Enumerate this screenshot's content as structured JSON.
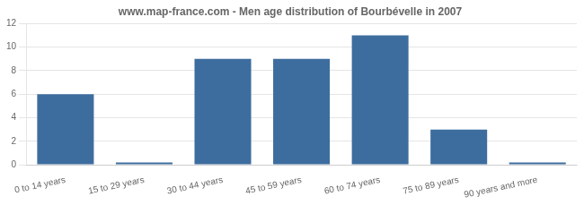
{
  "chart_data": {
    "type": "bar",
    "title": "www.map-france.com - Men age distribution of Bourbévelle in 2007",
    "categories": [
      "0 to 14 years",
      "15 to 29 years",
      "30 to 44 years",
      "45 to 59 years",
      "60 to 74 years",
      "75 to 89 years",
      "90 years and more"
    ],
    "values": [
      6,
      0.2,
      9,
      9,
      11,
      3,
      0.2
    ],
    "color": "#3d6d9e",
    "ylim": [
      0,
      12
    ],
    "yticks": [
      0,
      2,
      4,
      6,
      8,
      10,
      12
    ],
    "grid": true
  }
}
